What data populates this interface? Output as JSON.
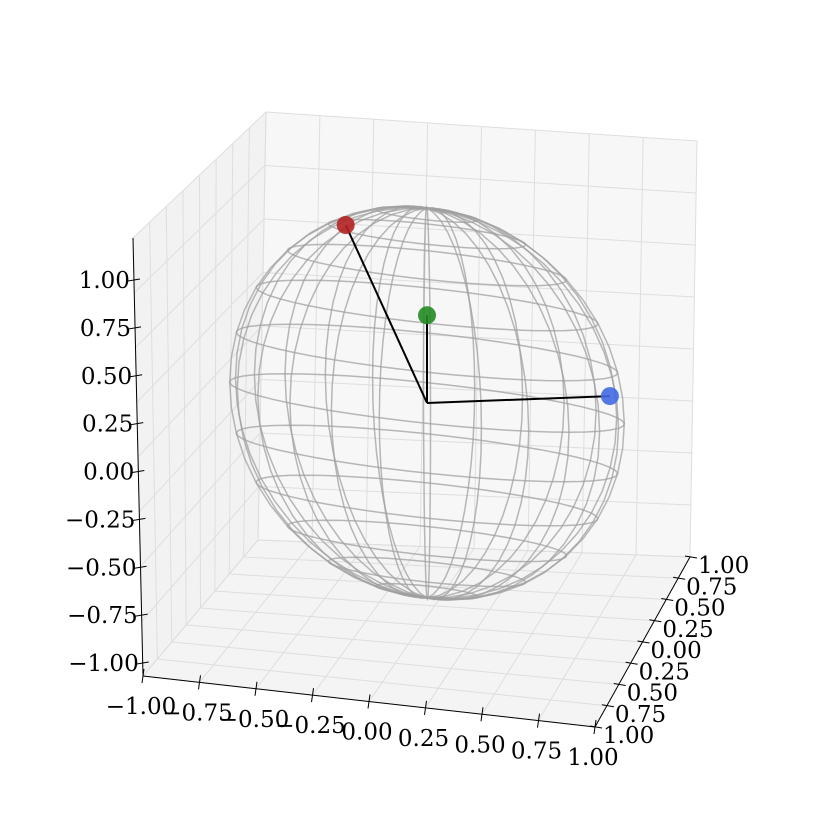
{
  "chart_data": {
    "type": "scatter",
    "projection": "3d",
    "title": "",
    "xlabel": "",
    "ylabel": "",
    "zlabel": "",
    "xlim": [
      -1.0,
      1.0
    ],
    "ylim": [
      -1.0,
      1.0
    ],
    "zlim": [
      -1.0,
      1.0
    ],
    "grid": true,
    "x_ticks": [
      "−1.00",
      "−0.75",
      "−0.50",
      "−0.25",
      "0.00",
      "0.25",
      "0.50",
      "0.75",
      "1.00"
    ],
    "y_ticks": [
      "1.00",
      "0.75",
      "0.50",
      "0.25",
      "0.00",
      "0.25",
      "0.50",
      "0.75",
      "1.00"
    ],
    "z_ticks": [
      "1.00",
      "0.75",
      "0.50",
      "0.25",
      "0.00",
      "−0.25",
      "−0.50",
      "−0.75",
      "−1.00"
    ],
    "sphere": {
      "type": "wireframe",
      "radius": 1.0,
      "center": [
        0,
        0,
        0
      ],
      "color": "#a0a0a0"
    },
    "points": [
      {
        "color": "#b22222",
        "x": -0.35,
        "y": 0.3,
        "z": 0.89
      },
      {
        "color": "#228b22",
        "x": 0.0,
        "y": 0.0,
        "z": 0.45
      },
      {
        "color": "#4169e1",
        "x": 0.98,
        "y": 0.1,
        "z": 0.17
      }
    ],
    "vector_color": "#000000"
  }
}
